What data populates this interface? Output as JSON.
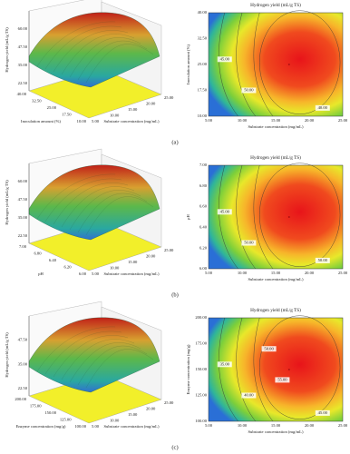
{
  "panels": [
    {
      "caption": "(a)",
      "surface": {
        "zlabel": "Hydrogen yield (mL/g TS)",
        "zticks": [
          "22.50",
          "35.00",
          "47.50",
          "60.00"
        ],
        "xlabel": "Inoculation amount (%)",
        "xticks": [
          "40.00",
          "32.50",
          "25.00",
          "17.50",
          "10.00"
        ],
        "ylabel": "Substrate concentration (mg/mL)",
        "yticks": [
          "5.00",
          "10.00",
          "15.00",
          "20.00",
          "25.00"
        ]
      },
      "contour": {
        "title": "Hydrogen yield (mL/g TS)",
        "xlabel": "Substrate concentration (mg/mL)",
        "xticks": [
          "5.00",
          "10.00",
          "15.00",
          "20.00",
          "25.00"
        ],
        "ylabel": "Inoculation amount (%)",
        "yticks": [
          "10.00",
          "17.50",
          "25.00",
          "32.50",
          "40.00"
        ],
        "levels": [
          "45.00",
          "50.00",
          "40.00"
        ]
      }
    },
    {
      "caption": "(b)",
      "surface": {
        "zlabel": "Hydrogen yield (mL/g TS)",
        "zticks": [
          "22.50",
          "35.00",
          "47.50",
          "60.00"
        ],
        "xlabel": "pH",
        "xticks": [
          "7.00",
          "6.80",
          "6.40",
          "6.20",
          "6.00"
        ],
        "ylabel": "Substrate concentration (mg/mL)",
        "yticks": [
          "5.00",
          "10.00",
          "15.00",
          "20.00",
          "25.00"
        ]
      },
      "contour": {
        "title": "Hydrogen yield (mL/g TS)",
        "xlabel": "Substrate concentration (mg/mL)",
        "xticks": [
          "5.00",
          "10.00",
          "15.00",
          "20.00",
          "25.00"
        ],
        "ylabel": "pH",
        "yticks": [
          "6.00",
          "6.20",
          "6.40",
          "6.60",
          "6.80",
          "7.00"
        ],
        "levels": [
          "45.00",
          "50.00",
          "50.00"
        ]
      }
    },
    {
      "caption": "(c)",
      "surface": {
        "zlabel": "Hydrogen yield (mL/g TS)",
        "zticks": [
          "22.50",
          "35.00",
          "47.50"
        ],
        "xlabel": "Enzyme concentration (mg/g)",
        "xticks": [
          "200.00",
          "175.00",
          "150.00",
          "125.00",
          "100.00"
        ],
        "ylabel": "Substrate concentration (mg/mL)",
        "yticks": [
          "5.00",
          "10.00",
          "15.00",
          "20.00",
          "25.00"
        ]
      },
      "contour": {
        "title": "Hydrogen yield (mL/g TS)",
        "xlabel": "Substrate concentration (mg/mL)",
        "xticks": [
          "5.00",
          "10.00",
          "15.00",
          "20.00",
          "25.00"
        ],
        "ylabel": "Enzyme concentration (mg/g)",
        "yticks": [
          "100.00",
          "125.00",
          "150.00",
          "175.00",
          "200.00"
        ],
        "levels": [
          "35.00",
          "40.00",
          "45.00",
          "50.00",
          "55.00"
        ]
      }
    }
  ]
}
